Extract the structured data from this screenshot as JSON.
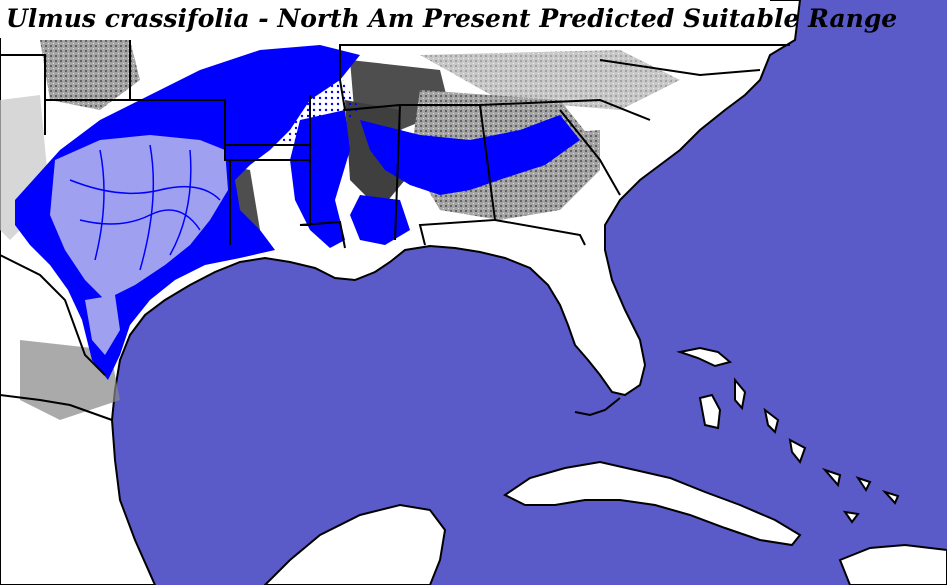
{
  "map": {
    "title": "Ulmus crassifolia - North Am Present Predicted Suitable Range",
    "colors": {
      "ocean": "#5a5ac8",
      "land": "#ffffff",
      "suitable_range": "#0000ff",
      "suitable_core": "#a0a0f0",
      "terrain_dark": "#3a3a3a",
      "terrain_mid": "#8a8a8a",
      "terrain_light": "#c8c8c8",
      "borders": "#000000"
    }
  }
}
